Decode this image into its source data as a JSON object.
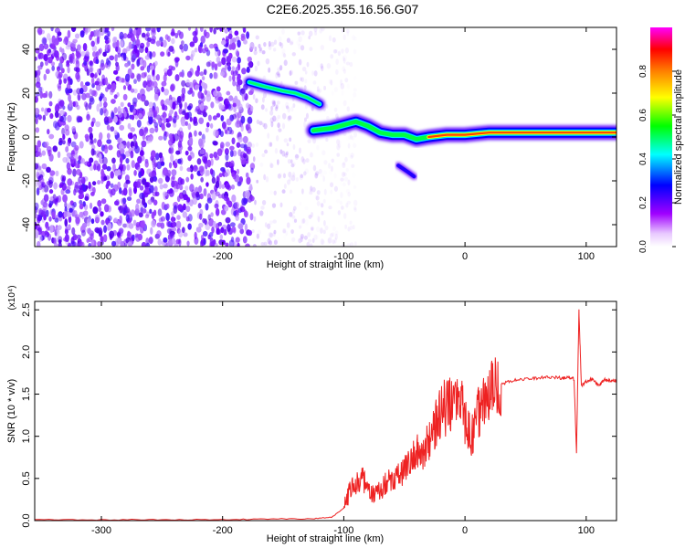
{
  "title": "C2E6.2025.355.16.56.G07",
  "chart_data": [
    {
      "type": "heatmap",
      "xlabel": "Height of straight line (km)",
      "ylabel": "Frequency (Hz)",
      "xlim": [
        -355,
        125
      ],
      "ylim": [
        -50,
        50
      ],
      "xticks": [
        -300,
        -200,
        -100,
        0,
        100
      ],
      "yticks": [
        -40,
        -20,
        0,
        20,
        40
      ],
      "colorbar": {
        "label": "Normalized spectral amplitude",
        "range": [
          0,
          1
        ],
        "ticks": [
          "0.0",
          "0.2",
          "0.4",
          "0.6",
          "0.8"
        ],
        "colors": [
          "#ffffff",
          "#a000ff",
          "#0000ff",
          "#00ffff",
          "#00ff00",
          "#ffff00",
          "#ff8000",
          "#ff0000",
          "#ff00ff"
        ]
      },
      "features": {
        "noise_region": {
          "x": [
            -355,
            -175
          ],
          "y": [
            -50,
            50
          ],
          "amplitude": 0.12
        },
        "fading_noise": {
          "x": [
            -175,
            -90
          ],
          "amplitude": 0.05
        },
        "upper_track": [
          [
            -178,
            25
          ],
          [
            -165,
            23
          ],
          [
            -150,
            21
          ],
          [
            -140,
            20
          ],
          [
            -130,
            18
          ],
          [
            -120,
            15
          ]
        ],
        "main_track": [
          [
            -125,
            3
          ],
          [
            -110,
            4
          ],
          [
            -90,
            7
          ],
          [
            -80,
            5
          ],
          [
            -70,
            2
          ],
          [
            -60,
            1
          ],
          [
            -50,
            1
          ],
          [
            -40,
            -1
          ],
          [
            -30,
            0
          ],
          [
            -15,
            1
          ],
          [
            0,
            1
          ],
          [
            20,
            2
          ],
          [
            50,
            2
          ],
          [
            80,
            2
          ],
          [
            100,
            2
          ],
          [
            125,
            2
          ]
        ],
        "lower_branch": [
          [
            -55,
            -13
          ],
          [
            -47,
            -16
          ],
          [
            -42,
            -18
          ]
        ]
      }
    },
    {
      "type": "line",
      "xlabel": "Height of straight line (km)",
      "ylabel": "SNR (10 * v/v)",
      "scale_label": "(x10⁴)",
      "xlim": [
        -355,
        125
      ],
      "ylim": [
        0,
        2.6
      ],
      "xticks": [
        -300,
        -200,
        -100,
        0,
        100
      ],
      "yticks": [
        "0.0",
        "0.5",
        "1.0",
        "1.5",
        "2.0",
        "2.5"
      ],
      "color": "#ee2222",
      "series": [
        {
          "x": [
            -355,
            -300,
            -250,
            -200,
            -160,
            -130,
            -110,
            -100,
            -95,
            -90,
            -85,
            -80,
            -75,
            -70,
            -65,
            -60,
            -55,
            -50,
            -45,
            -40,
            -35,
            -30,
            -25,
            -20,
            -15,
            -10,
            -5,
            0,
            5,
            10,
            15,
            20,
            25,
            30,
            40,
            50,
            60,
            70,
            80,
            85,
            90,
            92,
            94,
            96,
            100,
            105,
            110,
            115,
            120,
            125
          ],
          "y": [
            0.01,
            0.01,
            0.01,
            0.01,
            0.02,
            0.02,
            0.04,
            0.15,
            0.35,
            0.45,
            0.5,
            0.4,
            0.3,
            0.35,
            0.45,
            0.5,
            0.55,
            0.6,
            0.7,
            0.85,
            0.8,
            0.95,
            1.1,
            1.3,
            1.35,
            1.4,
            1.45,
            1.2,
            0.95,
            1.25,
            1.45,
            1.55,
            1.58,
            1.62,
            1.66,
            1.68,
            1.69,
            1.7,
            1.69,
            1.7,
            1.68,
            0.8,
            2.5,
            1.6,
            1.65,
            1.68,
            1.6,
            1.67,
            1.66,
            1.66
          ]
        }
      ]
    }
  ]
}
